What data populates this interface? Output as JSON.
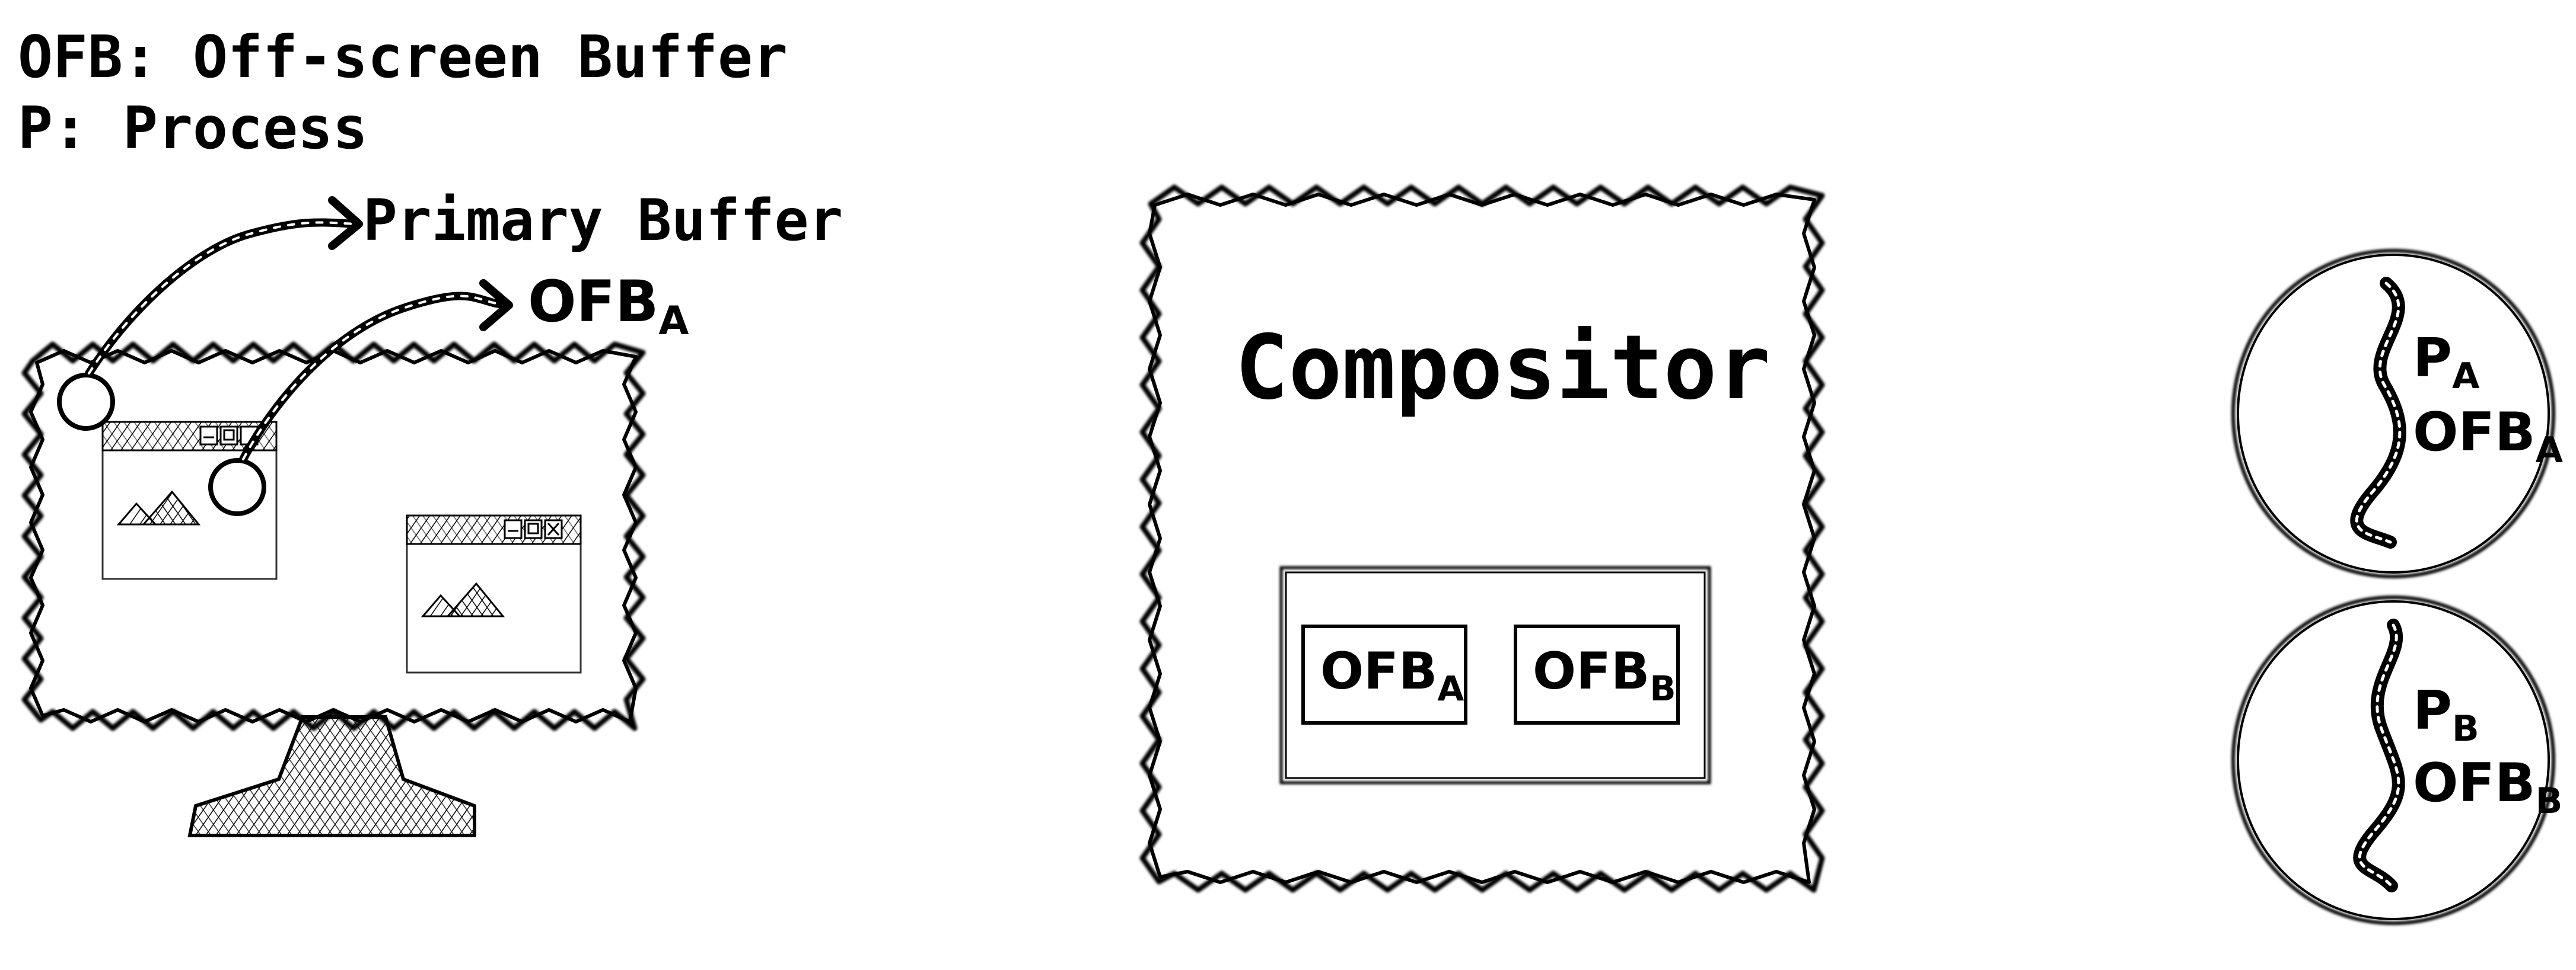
{
  "legend": {
    "line1": "OFB: Off-screen Buffer",
    "line2": "P: Process"
  },
  "labels": {
    "primary_buffer": "Primary Buffer",
    "ofb_a_main": "OFB",
    "ofb_a_sub": "A"
  },
  "compositor": {
    "title": "Compositor",
    "buffers": [
      {
        "main": "OFB",
        "sub": "A"
      },
      {
        "main": "OFB",
        "sub": "B"
      }
    ]
  },
  "processes": [
    {
      "p_main": "P",
      "p_sub": "A",
      "ofb_main": "OFB",
      "ofb_sub": "A"
    },
    {
      "p_main": "P",
      "p_sub": "B",
      "ofb_main": "OFB",
      "ofb_sub": "B"
    }
  ]
}
